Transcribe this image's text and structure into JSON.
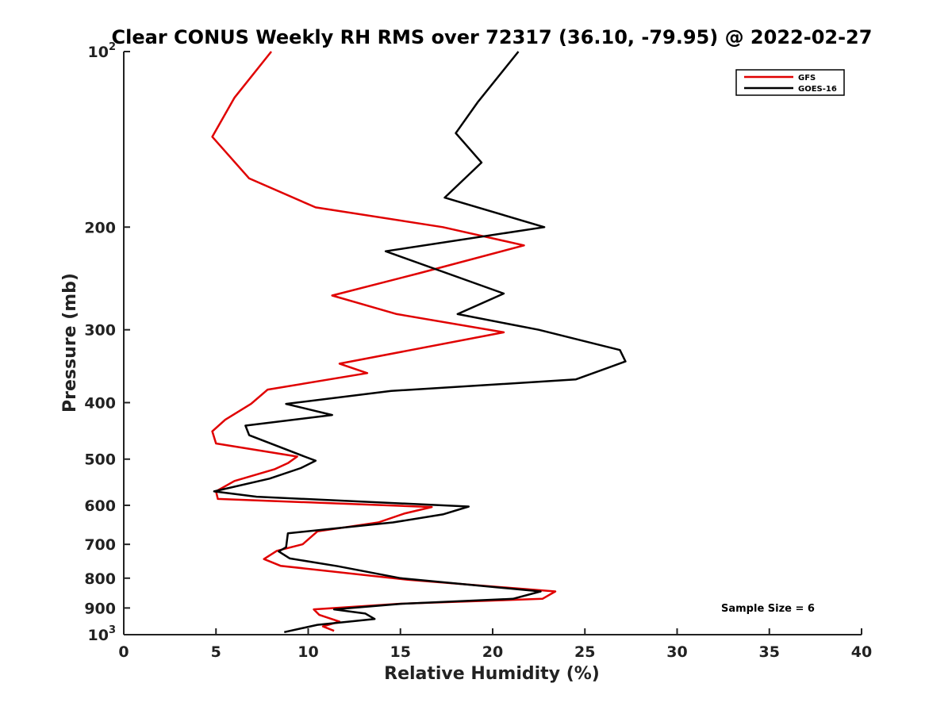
{
  "chart_data": {
    "type": "line",
    "title": "Clear CONUS Weekly RH RMS over 72317 (36.10, -79.95) @ 2022-02-27",
    "xlabel": "Relative Humidity (%)",
    "ylabel": "Pressure (mb)",
    "xlim": [
      0,
      40
    ],
    "ylim": [
      100,
      1000
    ],
    "y_scale": "log",
    "y_reversed": true,
    "x_ticks": [
      0,
      5,
      10,
      15,
      20,
      25,
      30,
      35,
      40
    ],
    "y_ticks": [
      {
        "value": 100,
        "base": "10",
        "exp": "2"
      },
      {
        "value": 200,
        "label": "200"
      },
      {
        "value": 300,
        "label": "300"
      },
      {
        "value": 400,
        "label": "400"
      },
      {
        "value": 500,
        "label": "500"
      },
      {
        "value": 600,
        "label": "600"
      },
      {
        "value": 700,
        "label": "700"
      },
      {
        "value": 800,
        "label": "800"
      },
      {
        "value": 900,
        "label": "900"
      },
      {
        "value": 1000,
        "base": "10",
        "exp": "3"
      }
    ],
    "grid": false,
    "legend_position": "top-right",
    "series": [
      {
        "name": "GFS",
        "color": "#e00000",
        "points": [
          [
            8.0,
            100
          ],
          [
            6.0,
            120
          ],
          [
            4.8,
            140
          ],
          [
            6.8,
            165
          ],
          [
            10.4,
            185
          ],
          [
            17.3,
            200
          ],
          [
            21.7,
            215
          ],
          [
            16.0,
            240
          ],
          [
            11.3,
            262
          ],
          [
            14.8,
            282
          ],
          [
            20.6,
            303
          ],
          [
            11.7,
            343
          ],
          [
            13.2,
            356
          ],
          [
            7.8,
            380
          ],
          [
            6.9,
            402
          ],
          [
            5.5,
            428
          ],
          [
            4.8,
            448
          ],
          [
            5.0,
            470
          ],
          [
            9.4,
            495
          ],
          [
            8.9,
            508
          ],
          [
            8.2,
            520
          ],
          [
            6.0,
            545
          ],
          [
            5.0,
            568
          ],
          [
            5.1,
            585
          ],
          [
            16.7,
            604
          ],
          [
            15.2,
            620
          ],
          [
            13.8,
            642
          ],
          [
            10.5,
            665
          ],
          [
            9.7,
            700
          ],
          [
            8.3,
            718
          ],
          [
            7.6,
            742
          ],
          [
            8.5,
            762
          ],
          [
            15.4,
            805
          ],
          [
            23.4,
            843
          ],
          [
            22.7,
            868
          ],
          [
            15.0,
            885
          ],
          [
            10.3,
            905
          ],
          [
            10.6,
            925
          ],
          [
            11.7,
            950
          ],
          [
            10.8,
            968
          ],
          [
            11.4,
            985
          ]
        ]
      },
      {
        "name": "GOES-16",
        "color": "#000000",
        "points": [
          [
            21.4,
            100
          ],
          [
            19.2,
            122
          ],
          [
            18.0,
            138
          ],
          [
            19.4,
            155
          ],
          [
            17.4,
            178
          ],
          [
            22.8,
            200
          ],
          [
            14.2,
            220
          ],
          [
            20.6,
            260
          ],
          [
            18.1,
            282
          ],
          [
            22.5,
            300
          ],
          [
            26.9,
            325
          ],
          [
            27.2,
            340
          ],
          [
            24.5,
            365
          ],
          [
            14.5,
            382
          ],
          [
            8.8,
            402
          ],
          [
            11.3,
            420
          ],
          [
            6.6,
            438
          ],
          [
            6.8,
            455
          ],
          [
            9.8,
            495
          ],
          [
            10.4,
            503
          ],
          [
            9.6,
            518
          ],
          [
            7.9,
            540
          ],
          [
            4.9,
            568
          ],
          [
            7.2,
            580
          ],
          [
            18.7,
            603
          ],
          [
            17.3,
            622
          ],
          [
            14.6,
            642
          ],
          [
            8.9,
            670
          ],
          [
            8.8,
            708
          ],
          [
            8.4,
            720
          ],
          [
            9.0,
            740
          ],
          [
            11.6,
            763
          ],
          [
            15.0,
            800
          ],
          [
            22.6,
            843
          ],
          [
            21.1,
            868
          ],
          [
            15.1,
            885
          ],
          [
            11.4,
            905
          ],
          [
            13.1,
            920
          ],
          [
            13.6,
            940
          ],
          [
            10.5,
            962
          ],
          [
            8.7,
            990
          ]
        ]
      }
    ],
    "annotation": "Sample Size = 6"
  }
}
